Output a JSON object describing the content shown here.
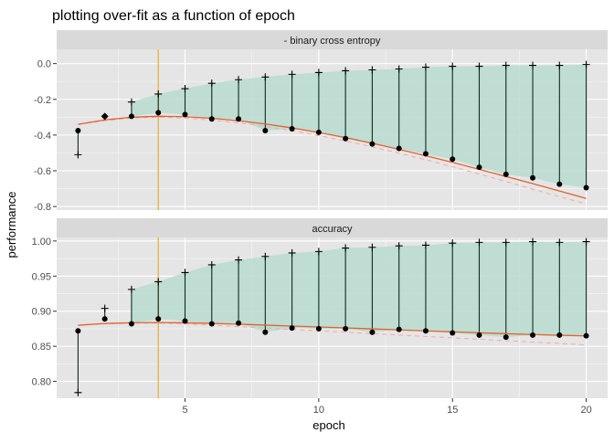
{
  "chart_data": {
    "type": "line",
    "title": "plotting over-fit as a function of epoch",
    "xlabel": "epoch",
    "ylabel": "performance",
    "xlim": [
      0.2,
      20.8
    ],
    "x_ticks": [
      5,
      10,
      15,
      20
    ],
    "grid": true,
    "colors": {
      "panel_bg": "#e5e5e5",
      "strip_bg": "#d9d9d9",
      "grid": "#ffffff",
      "ribbon": "#b9dccf",
      "point": "#000000",
      "smooth": "#e1622e",
      "dashed": "#f1aaa8",
      "vline": "#e8b13a"
    },
    "vline_x": 4,
    "panels": [
      {
        "strip": "- binary cross entropy",
        "ylim": [
          -0.82,
          0.08
        ],
        "y_ticks": [
          0.0,
          -0.2,
          -0.4,
          -0.6,
          -0.8
        ],
        "y_tick_labels": [
          "0.0",
          "-0.2",
          "-0.4",
          "-0.6",
          "-0.8"
        ],
        "epochs": [
          1,
          2,
          3,
          4,
          5,
          6,
          7,
          8,
          9,
          10,
          11,
          12,
          13,
          14,
          15,
          16,
          17,
          18,
          19,
          20
        ],
        "test": [
          -0.375,
          null,
          -0.295,
          -0.275,
          -0.285,
          -0.31,
          -0.31,
          -0.375,
          -0.365,
          -0.385,
          -0.42,
          -0.45,
          -0.475,
          -0.505,
          -0.535,
          -0.58,
          -0.62,
          -0.64,
          -0.675,
          -0.695
        ],
        "train": [
          -0.51,
          -0.295,
          -0.215,
          -0.17,
          -0.14,
          -0.11,
          -0.09,
          -0.075,
          -0.06,
          -0.05,
          -0.04,
          -0.035,
          -0.03,
          -0.02,
          -0.015,
          -0.015,
          -0.01,
          -0.01,
          -0.01,
          -0.005
        ],
        "smooth": [
          -0.34,
          -0.315,
          -0.3,
          -0.295,
          -0.297,
          -0.306,
          -0.32,
          -0.338,
          -0.36,
          -0.386,
          -0.414,
          -0.446,
          -0.48,
          -0.516,
          -0.553,
          -0.592,
          -0.632,
          -0.672,
          -0.713,
          -0.755
        ],
        "dashed": [
          -0.34,
          -0.32,
          -0.305,
          -0.3,
          -0.305,
          -0.316,
          -0.332,
          -0.352,
          -0.376,
          -0.403,
          -0.433,
          -0.466,
          -0.501,
          -0.538,
          -0.577,
          -0.618,
          -0.66,
          -0.703,
          -0.745,
          -0.785
        ]
      },
      {
        "strip": "accuracy",
        "ylim": [
          0.776,
          1.005
        ],
        "y_ticks": [
          0.8,
          0.85,
          0.9,
          0.95,
          1.0
        ],
        "y_tick_labels": [
          "0.80",
          "0.85",
          "0.90",
          "0.95",
          "1.00"
        ],
        "epochs": [
          1,
          2,
          3,
          4,
          5,
          6,
          7,
          8,
          9,
          10,
          11,
          12,
          13,
          14,
          15,
          16,
          17,
          18,
          19,
          20
        ],
        "test": [
          0.872,
          0.889,
          0.882,
          0.889,
          0.886,
          0.882,
          0.883,
          0.87,
          0.876,
          0.875,
          0.875,
          0.87,
          0.874,
          0.872,
          0.869,
          0.866,
          0.863,
          0.866,
          0.866,
          0.865
        ],
        "train": [
          0.784,
          0.904,
          0.931,
          0.942,
          0.955,
          0.966,
          0.973,
          0.978,
          0.983,
          0.985,
          0.99,
          0.991,
          0.993,
          0.994,
          0.997,
          0.998,
          0.998,
          0.999,
          0.998,
          0.999
        ],
        "smooth": [
          0.88,
          0.8825,
          0.8835,
          0.8838,
          0.8834,
          0.8826,
          0.8815,
          0.8802,
          0.8788,
          0.8775,
          0.8762,
          0.8748,
          0.8734,
          0.872,
          0.8706,
          0.8693,
          0.868,
          0.8668,
          0.8657,
          0.8648
        ],
        "dashed": [
          0.88,
          0.882,
          0.883,
          0.883,
          0.882,
          0.88,
          0.878,
          0.876,
          0.874,
          0.872,
          0.87,
          0.868,
          0.866,
          0.864,
          0.862,
          0.86,
          0.858,
          0.856,
          0.854,
          0.852
        ]
      }
    ]
  }
}
